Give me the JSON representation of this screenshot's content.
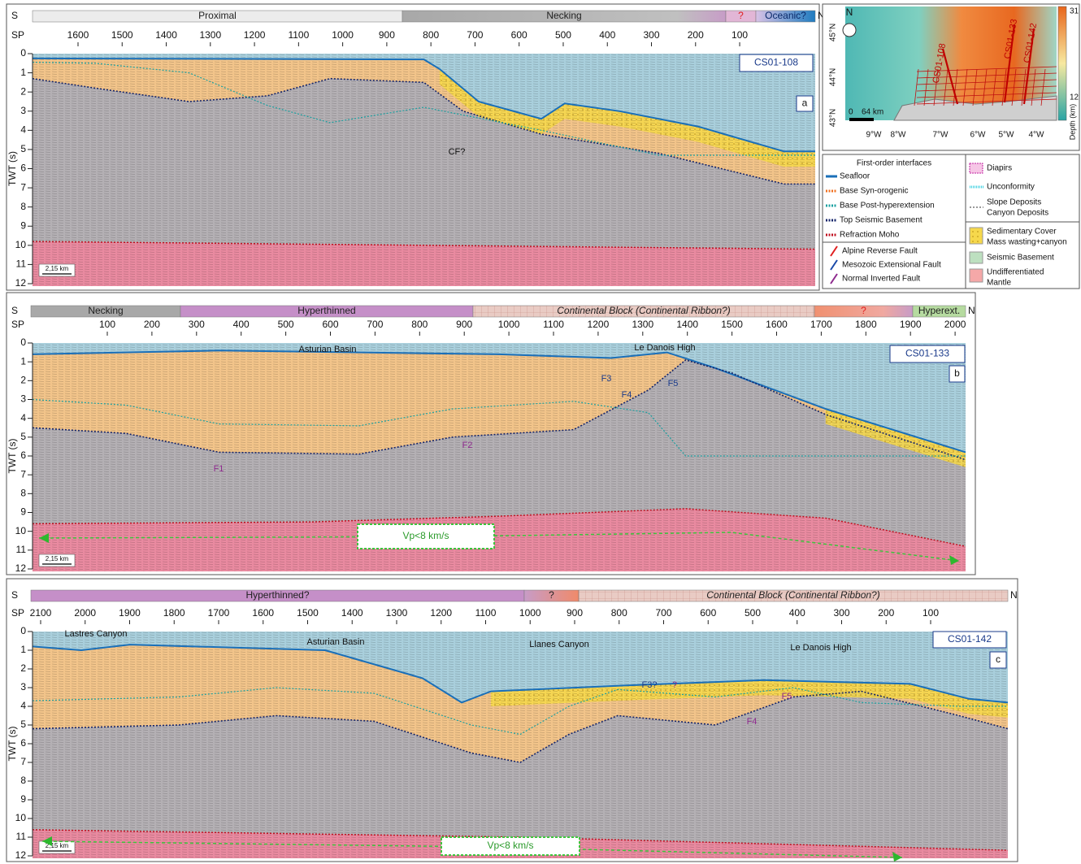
{
  "panels": [
    {
      "south": "S",
      "north": "N",
      "sp_label": "SP",
      "twt_label": "TWT (s)",
      "domains": [
        "Proximal",
        "Necking",
        "?",
        "Oceanic?"
      ],
      "sp_ticks": [
        1600,
        1500,
        1400,
        1300,
        1200,
        1100,
        1000,
        900,
        800,
        700,
        600,
        500,
        400,
        300,
        200,
        100
      ],
      "twt_ticks": [
        0,
        1,
        2,
        3,
        4,
        5,
        6,
        7,
        8,
        9,
        10,
        11,
        12
      ],
      "profile": "CS01-108",
      "panel_id": "a",
      "scale": "2,15 km",
      "annotations": [
        "CF?"
      ]
    },
    {
      "south": "S",
      "north": "N",
      "sp_label": "SP",
      "twt_label": "TWT (s)",
      "domains": [
        "Necking",
        "Hyperthinned",
        "Continental Block (Continental Ribbon?)",
        "?",
        "Hyperext."
      ],
      "sp_ticks": [
        100,
        200,
        300,
        400,
        500,
        600,
        700,
        800,
        900,
        1000,
        1100,
        1200,
        1300,
        1400,
        1500,
        1600,
        1700,
        1800,
        1900,
        2000
      ],
      "twt_ticks": [
        0,
        1,
        2,
        3,
        4,
        5,
        6,
        7,
        8,
        9,
        10,
        11,
        12
      ],
      "profile": "CS01-133",
      "panel_id": "b",
      "scale": "2,15 km",
      "annotations": [
        "Asturian Basin",
        "Le Danois High",
        "F1",
        "F2",
        "F3",
        "F4",
        "F5"
      ],
      "velocity_label": "Vp<8 km/s"
    },
    {
      "south": "S",
      "north": "N",
      "sp_label": "SP",
      "twt_label": "TWT (s)",
      "domains": [
        "Hyperthinned?",
        "?",
        "Continental Block (Continental Ribbon?)"
      ],
      "sp_ticks": [
        2100,
        2000,
        1900,
        1800,
        1700,
        1600,
        1500,
        1400,
        1300,
        1200,
        1100,
        1000,
        900,
        800,
        700,
        600,
        500,
        400,
        300,
        200,
        100
      ],
      "twt_ticks": [
        0,
        1,
        2,
        3,
        4,
        5,
        6,
        7,
        8,
        9,
        10,
        11,
        12
      ],
      "profile": "CS01-142",
      "panel_id": "c",
      "scale": "2,15 km",
      "annotations": [
        "Lastres Canyon",
        "Asturian Basin",
        "Llanes Canyon",
        "Le Danois High",
        "F3?",
        "?",
        "F4",
        "F5"
      ],
      "velocity_label": "Vp<8 km/s"
    }
  ],
  "map": {
    "north": "N",
    "lat_labels": [
      "45°N",
      "44°N",
      "43°N"
    ],
    "lon_labels": [
      "9°W",
      "8°W",
      "7°W",
      "6°W",
      "5°W",
      "4°W"
    ],
    "profiles": [
      "CS01-108",
      "CS01-133",
      "CS01-142"
    ],
    "scale_labels": [
      "0",
      "64 km"
    ],
    "colorbar_labels": [
      "31",
      "12"
    ],
    "colorbar_title": "Depth (km)"
  },
  "legend": {
    "title": "First-order interfaces",
    "interfaces": [
      "Seafloor",
      "Base Syn-orogenic",
      "Base Post-hyperextension",
      "Top Seismic Basement",
      "Refraction Moho"
    ],
    "faults": [
      "Alpine Reverse Fault",
      "Mesozoic Extensional Fault",
      "Normal Inverted Fault"
    ],
    "features": [
      "Diapirs",
      "Unconformity",
      "Slope Deposits",
      "Canyon Deposits"
    ],
    "units": [
      "Sedimentary Cover",
      "Mass wasting+canyon",
      "Seismic Basement",
      "Undifferentiated",
      "Mantle"
    ]
  }
}
